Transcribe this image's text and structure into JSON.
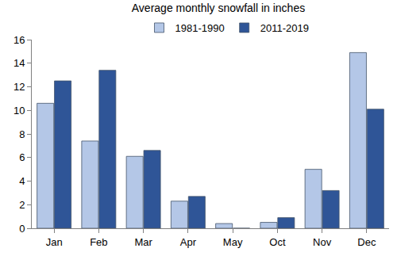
{
  "chart_data": {
    "type": "bar",
    "title": "Average monthly snowfall in inches",
    "categories": [
      "Jan",
      "Feb",
      "Mar",
      "Apr",
      "May",
      "Oct",
      "Nov",
      "Dec"
    ],
    "series": [
      {
        "name": "1981-1990",
        "color": "#b4c7e7",
        "values": [
          10.6,
          7.4,
          6.1,
          2.3,
          0.4,
          0.5,
          5.0,
          14.9
        ]
      },
      {
        "name": "2011-2019",
        "color": "#2f5597",
        "values": [
          12.5,
          13.4,
          6.6,
          2.7,
          0,
          0.9,
          3.2,
          10.1
        ]
      }
    ],
    "ylim": [
      0,
      16
    ],
    "yticks": [
      0,
      2,
      4,
      6,
      8,
      10,
      12,
      14,
      16
    ],
    "grid": false,
    "legend": "top"
  }
}
